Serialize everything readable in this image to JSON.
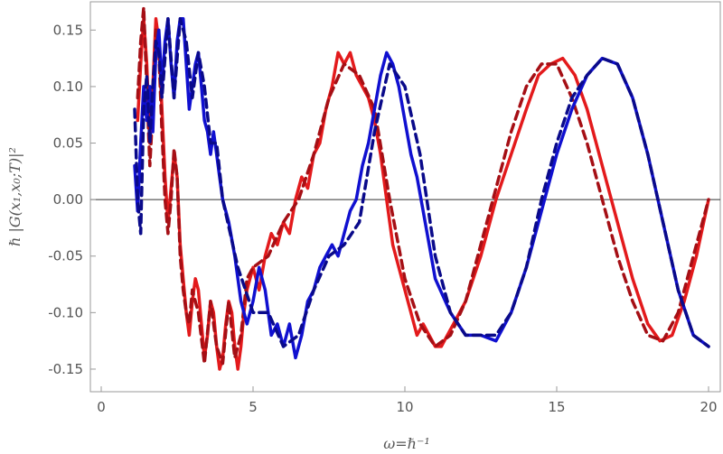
{
  "chart_data": {
    "type": "line",
    "title": "",
    "xlabel": "ω=ℏ⁻¹",
    "ylabel": "ℏ |G(x₁,x₀;T)|²",
    "xlim": [
      0,
      20
    ],
    "ylim": [
      -0.17,
      0.175
    ],
    "x_ticks": [
      0,
      5,
      10,
      15,
      20
    ],
    "x_tick_labels": [
      "0",
      "5",
      "10",
      "15",
      "20"
    ],
    "y_ticks": [
      -0.15,
      -0.1,
      -0.05,
      0.0,
      0.05,
      0.1,
      0.15
    ],
    "y_tick_labels": [
      "-0.15",
      "-0.10",
      "-0.05",
      "0.00",
      "0.05",
      "0.10",
      "0.15"
    ],
    "grid": false,
    "colors": {
      "red": "#e31a1c",
      "dark_red": "#a50f15",
      "blue": "#1010d0",
      "dark_blue": "#0a0a8a",
      "axis": "#999999",
      "zero_line": "#333333"
    },
    "series": [
      {
        "style": "solid",
        "color": "red",
        "x": [
          1.2,
          1.3,
          1.4,
          1.5,
          1.6,
          1.7,
          1.8,
          1.9,
          2.0,
          2.1,
          2.2,
          2.3,
          2.4,
          2.5,
          2.6,
          2.7,
          2.8,
          2.9,
          3.0,
          3.1,
          3.2,
          3.3,
          3.4,
          3.5,
          3.6,
          3.7,
          3.8,
          3.9,
          4.0,
          4.1,
          4.2,
          4.3,
          4.4,
          4.5,
          4.6,
          4.7,
          4.8,
          4.9,
          5.0,
          5.2,
          5.4,
          5.6,
          5.8,
          6.0,
          6.2,
          6.4,
          6.6,
          6.8,
          7.0,
          7.2,
          7.4,
          7.6,
          7.8,
          8.0,
          8.2,
          8.4,
          8.6,
          8.8,
          9.0,
          9.2,
          9.4,
          9.6,
          9.8,
          10.0,
          10.2,
          10.4,
          10.6,
          10.8,
          11.0,
          11.2,
          11.4,
          11.6,
          11.8,
          12.0,
          12.5,
          13.0,
          13.5,
          14.0,
          14.4,
          14.8,
          15.2,
          15.6,
          16.0,
          16.5,
          17.0,
          17.5,
          18.0,
          18.4,
          18.8,
          19.2,
          19.6,
          20.0
        ],
        "y": [
          0.07,
          0.12,
          0.16,
          0.12,
          0.05,
          0.1,
          0.16,
          0.14,
          0.08,
          0.02,
          -0.02,
          0.01,
          0.04,
          0.02,
          -0.04,
          -0.07,
          -0.1,
          -0.12,
          -0.09,
          -0.07,
          -0.08,
          -0.11,
          -0.14,
          -0.12,
          -0.09,
          -0.1,
          -0.13,
          -0.15,
          -0.14,
          -0.11,
          -0.09,
          -0.1,
          -0.13,
          -0.15,
          -0.13,
          -0.1,
          -0.08,
          -0.07,
          -0.06,
          -0.08,
          -0.05,
          -0.03,
          -0.04,
          -0.02,
          -0.03,
          0.0,
          0.02,
          0.01,
          0.04,
          0.05,
          0.08,
          0.1,
          0.13,
          0.12,
          0.13,
          0.11,
          0.1,
          0.09,
          0.07,
          0.04,
          0.0,
          -0.04,
          -0.06,
          -0.08,
          -0.1,
          -0.12,
          -0.11,
          -0.12,
          -0.13,
          -0.13,
          -0.12,
          -0.11,
          -0.1,
          -0.09,
          -0.05,
          0.0,
          0.04,
          0.08,
          0.11,
          0.12,
          0.125,
          0.11,
          0.08,
          0.03,
          -0.02,
          -0.07,
          -0.11,
          -0.125,
          -0.12,
          -0.09,
          -0.05,
          0.0
        ]
      },
      {
        "style": "dashed",
        "color": "dark_red",
        "x": [
          1.2,
          1.3,
          1.4,
          1.5,
          1.6,
          1.7,
          1.8,
          1.9,
          2.0,
          2.1,
          2.2,
          2.3,
          2.4,
          2.5,
          2.6,
          2.7,
          2.8,
          2.9,
          3.0,
          3.2,
          3.4,
          3.6,
          3.8,
          4.0,
          4.2,
          4.4,
          4.6,
          4.8,
          5.0,
          5.5,
          6.0,
          6.5,
          7.0,
          7.5,
          8.0,
          8.5,
          9.0,
          9.5,
          10.0,
          10.5,
          11.0,
          11.5,
          12.0,
          12.5,
          13.0,
          13.5,
          14.0,
          14.5,
          15.0,
          15.5,
          16.0,
          16.5,
          17.0,
          17.5,
          18.0,
          18.5,
          19.0,
          19.5,
          20.0
        ],
        "y": [
          0.09,
          0.14,
          0.17,
          0.1,
          0.03,
          0.08,
          0.15,
          0.13,
          0.06,
          0.0,
          -0.03,
          0.0,
          0.045,
          0.02,
          -0.05,
          -0.08,
          -0.1,
          -0.11,
          -0.08,
          -0.1,
          -0.145,
          -0.09,
          -0.13,
          -0.145,
          -0.09,
          -0.14,
          -0.12,
          -0.07,
          -0.06,
          -0.05,
          -0.02,
          0.0,
          0.04,
          0.09,
          0.12,
          0.11,
          0.08,
          0.0,
          -0.07,
          -0.11,
          -0.13,
          -0.12,
          -0.09,
          -0.04,
          0.01,
          0.06,
          0.1,
          0.12,
          0.12,
          0.09,
          0.05,
          0.0,
          -0.05,
          -0.09,
          -0.12,
          -0.125,
          -0.1,
          -0.05,
          0.0
        ]
      },
      {
        "style": "solid",
        "color": "blue",
        "x": [
          1.1,
          1.2,
          1.3,
          1.4,
          1.5,
          1.6,
          1.7,
          1.8,
          1.9,
          2.0,
          2.1,
          2.2,
          2.3,
          2.4,
          2.5,
          2.6,
          2.7,
          2.8,
          2.9,
          3.0,
          3.1,
          3.2,
          3.3,
          3.4,
          3.5,
          3.6,
          3.7,
          3.8,
          3.9,
          4.0,
          4.2,
          4.4,
          4.6,
          4.8,
          5.0,
          5.2,
          5.4,
          5.6,
          5.8,
          6.0,
          6.2,
          6.4,
          6.6,
          6.8,
          7.0,
          7.2,
          7.4,
          7.6,
          7.8,
          8.0,
          8.2,
          8.4,
          8.6,
          8.8,
          9.0,
          9.2,
          9.4,
          9.6,
          9.8,
          10.0,
          10.2,
          10.4,
          10.6,
          10.8,
          11.0,
          11.5,
          12.0,
          12.5,
          13.0,
          13.5,
          14.0,
          14.5,
          15.0,
          15.5,
          16.0,
          16.5,
          17.0,
          17.5,
          18.0,
          18.5,
          19.0,
          19.5,
          20.0
        ],
        "y": [
          0.03,
          -0.01,
          0.05,
          0.1,
          0.07,
          0.1,
          0.06,
          0.13,
          0.15,
          0.1,
          0.14,
          0.16,
          0.12,
          0.09,
          0.14,
          0.16,
          0.16,
          0.12,
          0.08,
          0.1,
          0.12,
          0.13,
          0.1,
          0.07,
          0.06,
          0.04,
          0.06,
          0.04,
          0.02,
          0.0,
          -0.02,
          -0.05,
          -0.09,
          -0.11,
          -0.09,
          -0.06,
          -0.08,
          -0.12,
          -0.11,
          -0.13,
          -0.11,
          -0.14,
          -0.12,
          -0.09,
          -0.08,
          -0.06,
          -0.05,
          -0.04,
          -0.05,
          -0.03,
          -0.01,
          0.0,
          0.03,
          0.05,
          0.08,
          0.11,
          0.13,
          0.12,
          0.1,
          0.07,
          0.04,
          0.02,
          -0.01,
          -0.04,
          -0.07,
          -0.1,
          -0.12,
          -0.12,
          -0.125,
          -0.1,
          -0.06,
          -0.01,
          0.04,
          0.08,
          0.11,
          0.125,
          0.12,
          0.09,
          0.04,
          -0.02,
          -0.08,
          -0.12,
          -0.13
        ]
      },
      {
        "style": "dashed",
        "color": "dark_blue",
        "x": [
          1.1,
          1.2,
          1.3,
          1.4,
          1.5,
          1.6,
          1.7,
          1.8,
          1.9,
          2.0,
          2.2,
          2.4,
          2.6,
          2.8,
          3.0,
          3.2,
          3.4,
          3.6,
          3.8,
          4.0,
          4.5,
          5.0,
          5.5,
          6.0,
          6.5,
          7.0,
          7.5,
          8.0,
          8.5,
          9.0,
          9.5,
          10.0,
          10.5,
          11.0,
          11.5,
          12.0,
          12.5,
          13.0,
          13.5,
          14.0,
          14.5,
          15.0,
          15.5,
          16.0,
          16.5,
          17.0,
          17.5,
          18.0,
          18.5,
          19.0,
          19.5,
          20.0
        ],
        "y": [
          0.08,
          0.0,
          -0.03,
          0.08,
          0.11,
          0.05,
          0.1,
          0.14,
          0.13,
          0.09,
          0.16,
          0.09,
          0.16,
          0.14,
          0.09,
          0.13,
          0.1,
          0.05,
          0.05,
          0.0,
          -0.06,
          -0.1,
          -0.1,
          -0.13,
          -0.12,
          -0.08,
          -0.05,
          -0.04,
          -0.02,
          0.06,
          0.12,
          0.1,
          0.04,
          -0.05,
          -0.1,
          -0.12,
          -0.12,
          -0.12,
          -0.1,
          -0.06,
          0.0,
          0.05,
          0.09,
          0.11,
          0.125,
          0.12,
          0.09,
          0.04,
          -0.02,
          -0.08,
          -0.12,
          -0.13
        ]
      }
    ]
  }
}
